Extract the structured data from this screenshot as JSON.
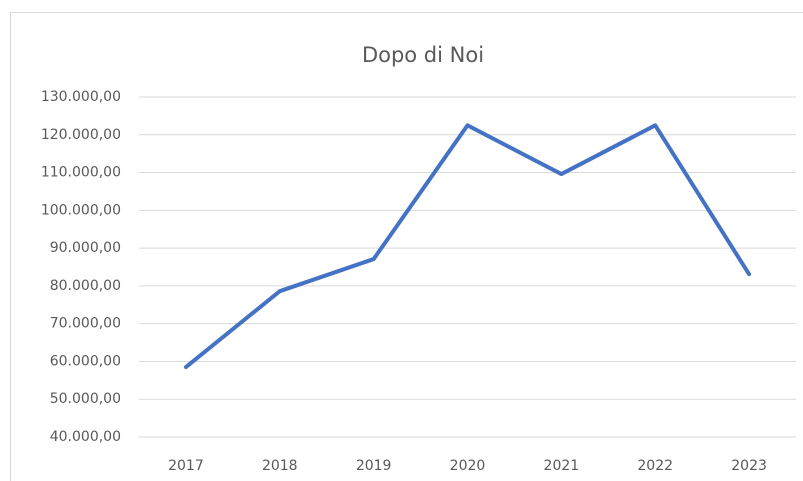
{
  "chart_data": {
    "type": "line",
    "title": "Dopo di Noi",
    "categories": [
      "2017",
      "2018",
      "2019",
      "2020",
      "2021",
      "2022",
      "2023"
    ],
    "series": [
      {
        "color": "#4472c4",
        "values": [
          58500,
          78600,
          87100,
          122500,
          109600,
          122500,
          83100
        ]
      }
    ],
    "ylim": [
      40000,
      130000
    ],
    "yticks": [
      {
        "value": 40000,
        "label": "40.000,00"
      },
      {
        "value": 50000,
        "label": "50.000,00"
      },
      {
        "value": 60000,
        "label": "60.000,00"
      },
      {
        "value": 70000,
        "label": "70.000,00"
      },
      {
        "value": 80000,
        "label": "80.000,00"
      },
      {
        "value": 90000,
        "label": "90.000,00"
      },
      {
        "value": 100000,
        "label": "100.000,00"
      },
      {
        "value": 110000,
        "label": "110.000,00"
      },
      {
        "value": 120000,
        "label": "120.000,00"
      },
      {
        "value": 130000,
        "label": "130.000,00"
      }
    ],
    "grid": true
  }
}
